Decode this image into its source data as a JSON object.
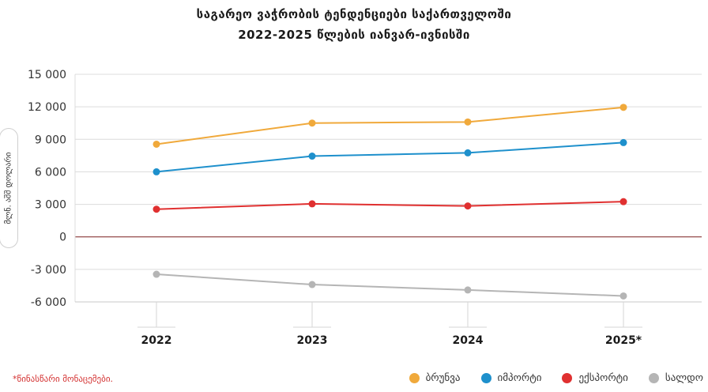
{
  "title_line1": "საგარეო ვაჭრობის ტენდენციები საქართველოში",
  "title_line2": "2022-2025 წლების იანვარ-ივნისში",
  "footnote": "*წინასწარი მონაცემები.",
  "chart_data": {
    "type": "line",
    "ylabel": "მლნ. აშშ დოლარი",
    "categories": [
      "2022",
      "2023",
      "2024",
      "2025*"
    ],
    "ylim": [
      -6000,
      15000
    ],
    "yticks": [
      15000,
      12000,
      9000,
      6000,
      3000,
      0,
      -3000,
      -6000
    ],
    "ytick_labels": [
      "15 000",
      "12 000",
      "9 000",
      "6 000",
      "3 000",
      "0",
      "-3 000",
      "-6 000"
    ],
    "grid": true,
    "legend_position": "bottom-right",
    "series": [
      {
        "name": "ბრუნვა",
        "color": "#f0a93b",
        "values": [
          8550,
          10500,
          10600,
          11950
        ]
      },
      {
        "name": "იმპორტი",
        "color": "#1e90cc",
        "values": [
          6000,
          7450,
          7750,
          8700
        ]
      },
      {
        "name": "ექსპორტი",
        "color": "#e03030",
        "values": [
          2550,
          3050,
          2850,
          3250
        ]
      },
      {
        "name": "სალდო",
        "color": "#b5b5b5",
        "values": [
          -3450,
          -4400,
          -4900,
          -5450
        ]
      }
    ]
  }
}
